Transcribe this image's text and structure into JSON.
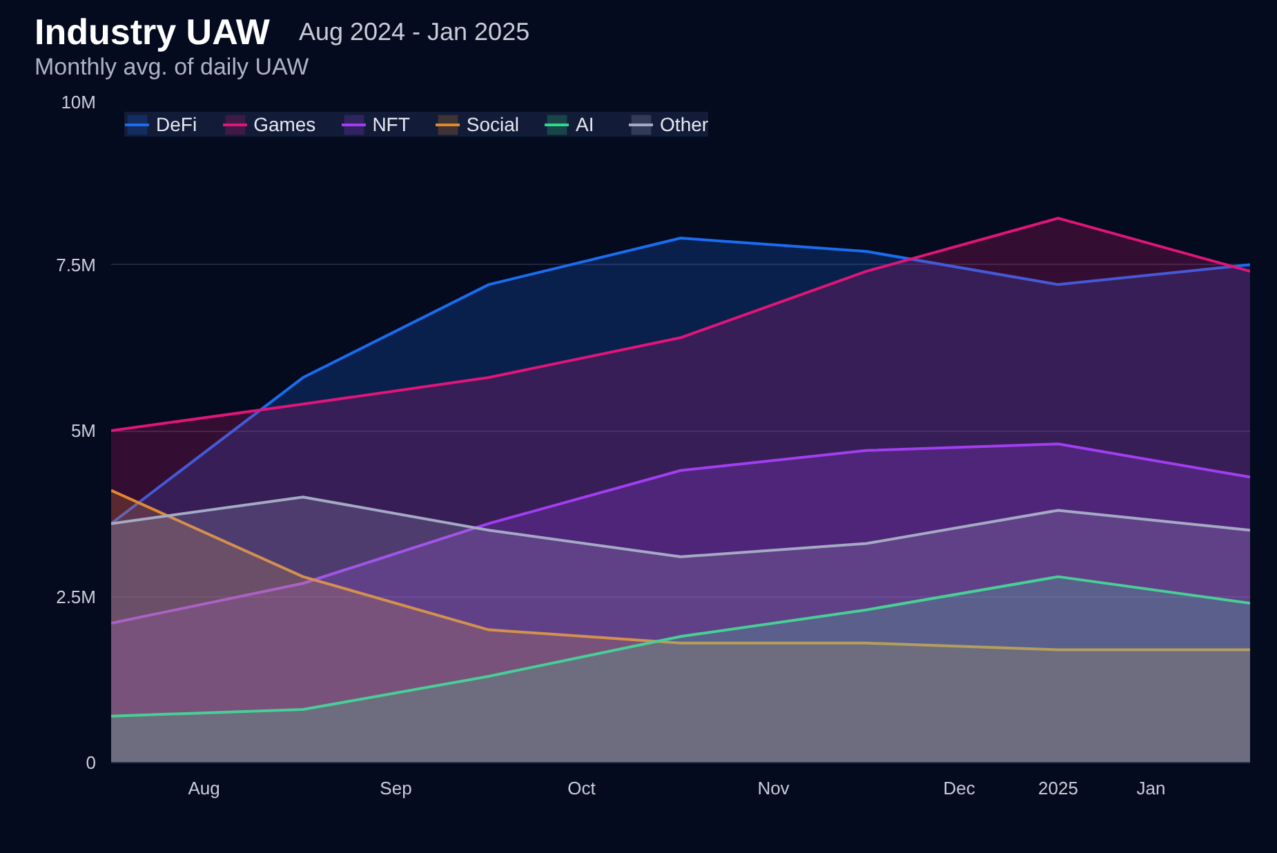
{
  "chart_data": {
    "type": "area",
    "title": "Industry UAW",
    "subtitle": "Monthly avg. of daily UAW",
    "annotations": [
      "Aug 2024 - Jan 2025"
    ],
    "x": [
      "2024-08-01",
      "2024-09-01",
      "2024-10-01",
      "2024-11-01",
      "2024-12-01",
      "2025-01-01",
      "2025-02-01"
    ],
    "series": [
      {
        "name": "DeFi",
        "color": "#1a6cf0",
        "values": [
          3600000,
          5800000,
          7200000,
          7900000,
          7700000,
          7200000,
          7500000
        ]
      },
      {
        "name": "Games",
        "color": "#e0157a",
        "values": [
          5000000,
          5400000,
          5800000,
          6400000,
          7400000,
          8200000,
          7400000
        ]
      },
      {
        "name": "NFT",
        "color": "#a13ef0",
        "values": [
          2100000,
          2700000,
          3600000,
          4400000,
          4700000,
          4800000,
          4300000
        ]
      },
      {
        "name": "Social",
        "color": "#e08a2e",
        "values": [
          4100000,
          2800000,
          2000000,
          1800000,
          1800000,
          1700000,
          1700000
        ]
      },
      {
        "name": "AI",
        "color": "#2fd98a",
        "values": [
          700000,
          800000,
          1300000,
          1900000,
          2300000,
          2800000,
          2400000
        ]
      },
      {
        "name": "Other",
        "color": "#a4a9c4",
        "values": [
          3600000,
          4000000,
          3500000,
          3100000,
          3300000,
          3800000,
          3500000
        ]
      }
    ],
    "xlim": [
      "2024-08-01",
      "2025-02-01"
    ],
    "xticks": [
      {
        "value": "2024-08-16",
        "label": "Aug"
      },
      {
        "value": "2024-09-16",
        "label": "Sep"
      },
      {
        "value": "2024-10-16",
        "label": "Oct"
      },
      {
        "value": "2024-11-16",
        "label": "Nov"
      },
      {
        "value": "2024-12-16",
        "label": "Dec"
      },
      {
        "value": "2025-01-01",
        "label": "2025"
      },
      {
        "value": "2025-01-16",
        "label": "Jan"
      }
    ],
    "ylim": [
      0,
      10000000
    ],
    "yticks": [
      {
        "value": 0,
        "label": "0"
      },
      {
        "value": 2500000,
        "label": "2.5M"
      },
      {
        "value": 5000000,
        "label": "5M"
      },
      {
        "value": 7500000,
        "label": "7.5M"
      },
      {
        "value": 10000000,
        "label": "10M"
      }
    ],
    "grid": "y",
    "legend": "top left"
  }
}
